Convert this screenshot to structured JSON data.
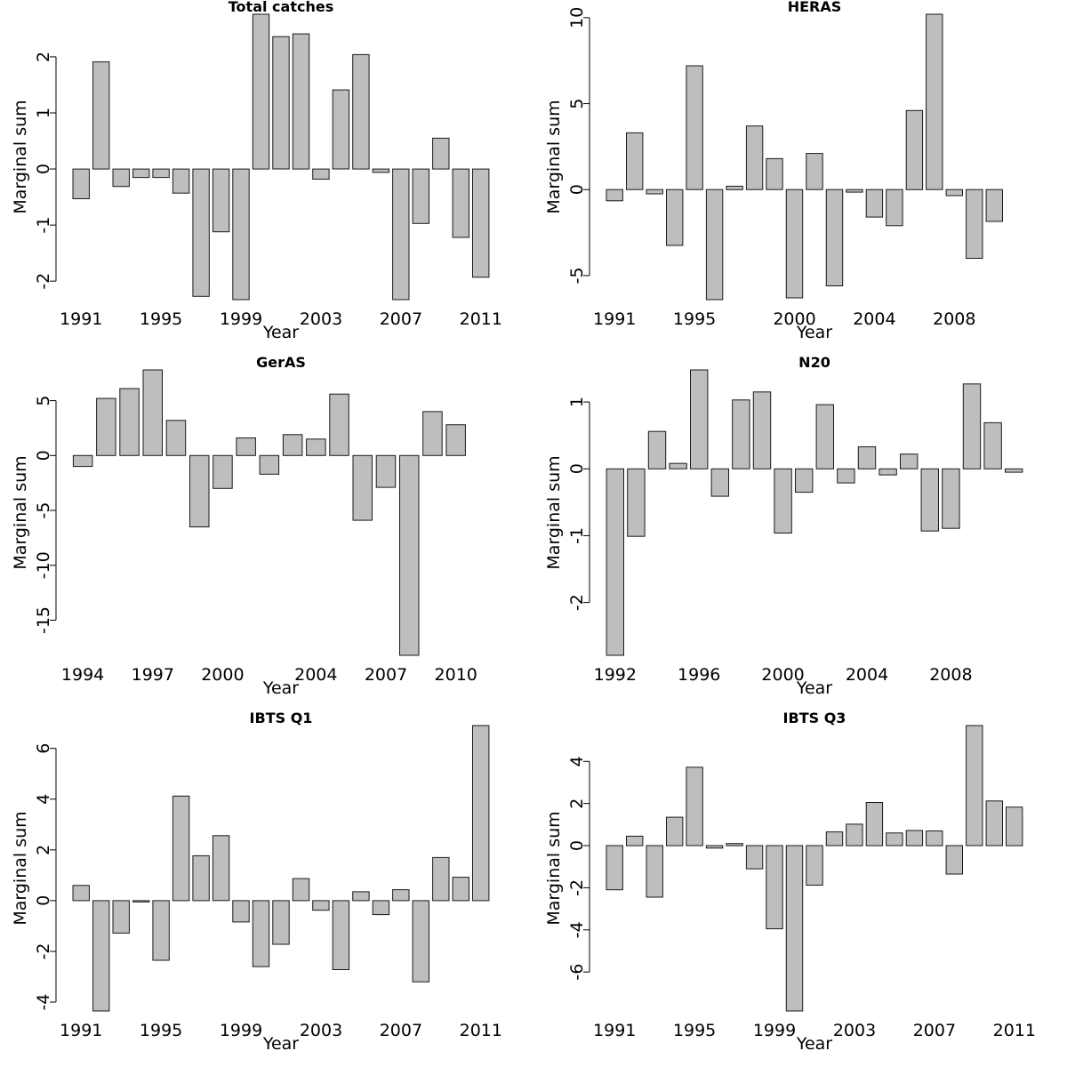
{
  "chart_data": [
    {
      "type": "bar",
      "title": "Total catches",
      "xlabel": "Year",
      "ylabel": "Marginal sum",
      "categories": [
        "1991",
        "1992",
        "1993",
        "1994",
        "1995",
        "1996",
        "1997",
        "1998",
        "1999",
        "2000",
        "2001",
        "2002",
        "2003",
        "2004",
        "2005",
        "2006",
        "2007",
        "2008",
        "2009",
        "2010",
        "2011"
      ],
      "values": [
        -0.53,
        1.91,
        -0.31,
        -0.15,
        -0.15,
        -0.43,
        -2.27,
        -1.12,
        -2.33,
        2.76,
        2.36,
        2.41,
        -0.18,
        1.41,
        2.04,
        -0.06,
        -2.33,
        -0.97,
        0.55,
        -1.22,
        -1.93
      ],
      "yticks": [
        -2,
        -1,
        0,
        1,
        2
      ],
      "xticks": [
        "1991",
        "1995",
        "1999",
        "2003",
        "2007",
        "2011"
      ],
      "ylim": [
        -2.33,
        2.76
      ],
      "grid": false
    },
    {
      "type": "bar",
      "title": "HERAS",
      "xlabel": "Year",
      "ylabel": "Marginal sum",
      "categories": [
        "1991",
        "1992",
        "1993",
        "1994",
        "1995",
        "1996",
        "1997",
        "1998",
        "1999",
        "2000",
        "2001",
        "2002",
        "2003",
        "2004",
        "2005",
        "2006",
        "2007",
        "2008",
        "2009",
        "2010",
        "2011"
      ],
      "values": [
        -0.65,
        3.3,
        -0.25,
        -3.25,
        7.2,
        -6.4,
        0.2,
        3.7,
        1.8,
        -6.3,
        2.1,
        -5.6,
        -0.15,
        -1.6,
        -2.1,
        4.6,
        10.2,
        -0.35,
        -4.0,
        -1.85,
        0
      ],
      "yticks": [
        -5,
        0,
        5,
        10
      ],
      "xticks": [
        "1991",
        "1995",
        "2000",
        "2004",
        "2008"
      ],
      "ylim": [
        -6.4,
        10.2
      ],
      "grid": false
    },
    {
      "type": "bar",
      "title": "GerAS",
      "xlabel": "Year",
      "ylabel": "Marginal sum",
      "categories": [
        "1994",
        "1995",
        "1996",
        "1997",
        "1998",
        "1999",
        "2000",
        "2001",
        "2002",
        "2003",
        "2004",
        "2005",
        "2006",
        "2007",
        "2008",
        "2009",
        "2010",
        "2011"
      ],
      "values": [
        -1.0,
        5.2,
        6.1,
        7.8,
        3.2,
        -6.5,
        -3.0,
        1.6,
        -1.7,
        1.9,
        1.5,
        5.6,
        -5.9,
        -2.9,
        -18.2,
        4.0,
        2.8,
        0
      ],
      "yticks": [
        -15,
        -10,
        -5,
        0,
        5
      ],
      "xticks": [
        "1994",
        "1997",
        "2000",
        "2004",
        "2007",
        "2010"
      ],
      "ylim": [
        -18.2,
        7.8
      ],
      "grid": false
    },
    {
      "type": "bar",
      "title": "N20",
      "xlabel": "Year",
      "ylabel": "Marginal sum",
      "categories": [
        "1992",
        "1993",
        "1994",
        "1995",
        "1996",
        "1997",
        "1998",
        "1999",
        "2000",
        "2001",
        "2002",
        "2003",
        "2004",
        "2005",
        "2006",
        "2007",
        "2008",
        "2009",
        "2010",
        "2011"
      ],
      "values": [
        -2.79,
        -1.01,
        0.56,
        0.08,
        1.48,
        -0.41,
        1.03,
        1.15,
        -0.96,
        -0.35,
        0.96,
        -0.21,
        0.33,
        -0.09,
        0.22,
        -0.93,
        -0.89,
        1.27,
        0.69,
        -0.05
      ],
      "yticks": [
        -2,
        -1,
        0,
        1
      ],
      "xticks": [
        "1992",
        "1996",
        "2000",
        "2004",
        "2008"
      ],
      "ylim": [
        -2.79,
        1.48
      ],
      "grid": false
    },
    {
      "type": "bar",
      "title": "IBTS Q1",
      "xlabel": "Year",
      "ylabel": "Marginal sum",
      "categories": [
        "1991",
        "1992",
        "1993",
        "1994",
        "1995",
        "1996",
        "1997",
        "1998",
        "1999",
        "2000",
        "2001",
        "2002",
        "2003",
        "2004",
        "2005",
        "2006",
        "2007",
        "2008",
        "2009",
        "2010",
        "2011"
      ],
      "values": [
        0.6,
        -4.35,
        -1.28,
        -0.05,
        -2.35,
        4.12,
        1.77,
        2.56,
        -0.84,
        -2.6,
        -1.72,
        0.87,
        -0.38,
        -2.72,
        0.35,
        -0.55,
        0.43,
        -3.2,
        1.7,
        0.92,
        6.9
      ],
      "yticks": [
        -4,
        -2,
        0,
        2,
        4,
        6
      ],
      "xticks": [
        "1991",
        "1995",
        "1999",
        "2003",
        "2007",
        "2011"
      ],
      "ylim": [
        -4.35,
        6.9
      ],
      "grid": false
    },
    {
      "type": "bar",
      "title": "IBTS Q3",
      "xlabel": "Year",
      "ylabel": "Marginal sum",
      "categories": [
        "1991",
        "1992",
        "1993",
        "1994",
        "1995",
        "1996",
        "1997",
        "1998",
        "1999",
        "2000",
        "2001",
        "2002",
        "2003",
        "2004",
        "2005",
        "2006",
        "2007",
        "2008",
        "2009",
        "2010",
        "2011"
      ],
      "values": [
        -2.1,
        0.45,
        -2.45,
        1.35,
        3.72,
        -0.12,
        0.1,
        -1.1,
        -3.95,
        -7.85,
        -1.88,
        0.65,
        1.02,
        2.05,
        0.6,
        0.72,
        0.7,
        -1.35,
        5.7,
        2.12,
        1.83
      ],
      "yticks": [
        -6,
        -4,
        -2,
        0,
        2,
        4
      ],
      "xticks": [
        "1991",
        "1995",
        "1999",
        "2003",
        "2007",
        "2011"
      ],
      "ylim": [
        -7.85,
        5.7
      ],
      "grid": false
    }
  ]
}
